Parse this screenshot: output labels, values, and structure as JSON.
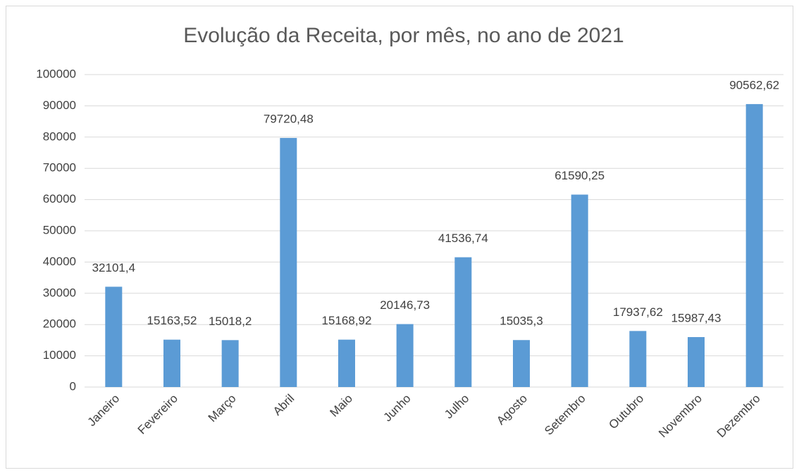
{
  "chart_data": {
    "type": "bar",
    "title": "Evolução da Receita, por mês, no ano de 2021",
    "categories": [
      "Janeiro",
      "Fevereiro",
      "Março",
      "Abril",
      "Maio",
      "Junho",
      "Julho",
      "Agosto",
      "Setembro",
      "Outubro",
      "Novembro",
      "Dezembro"
    ],
    "values": [
      32101.4,
      15163.52,
      15018.2,
      79720.48,
      15168.92,
      20146.73,
      41536.74,
      15035.3,
      61590.25,
      17937.62,
      15987.43,
      90562.62
    ],
    "value_labels": [
      "32101,4",
      "15163,52",
      "15018,2",
      "79720,48",
      "15168,92",
      "20146,73",
      "41536,74",
      "15035,3",
      "61590,25",
      "17937,62",
      "15987,43",
      "90562,62"
    ],
    "color": "#5b9bd5",
    "ylim": [
      0,
      100000
    ],
    "yticks": [
      0,
      10000,
      20000,
      30000,
      40000,
      50000,
      60000,
      70000,
      80000,
      90000,
      100000
    ],
    "grid": true
  }
}
